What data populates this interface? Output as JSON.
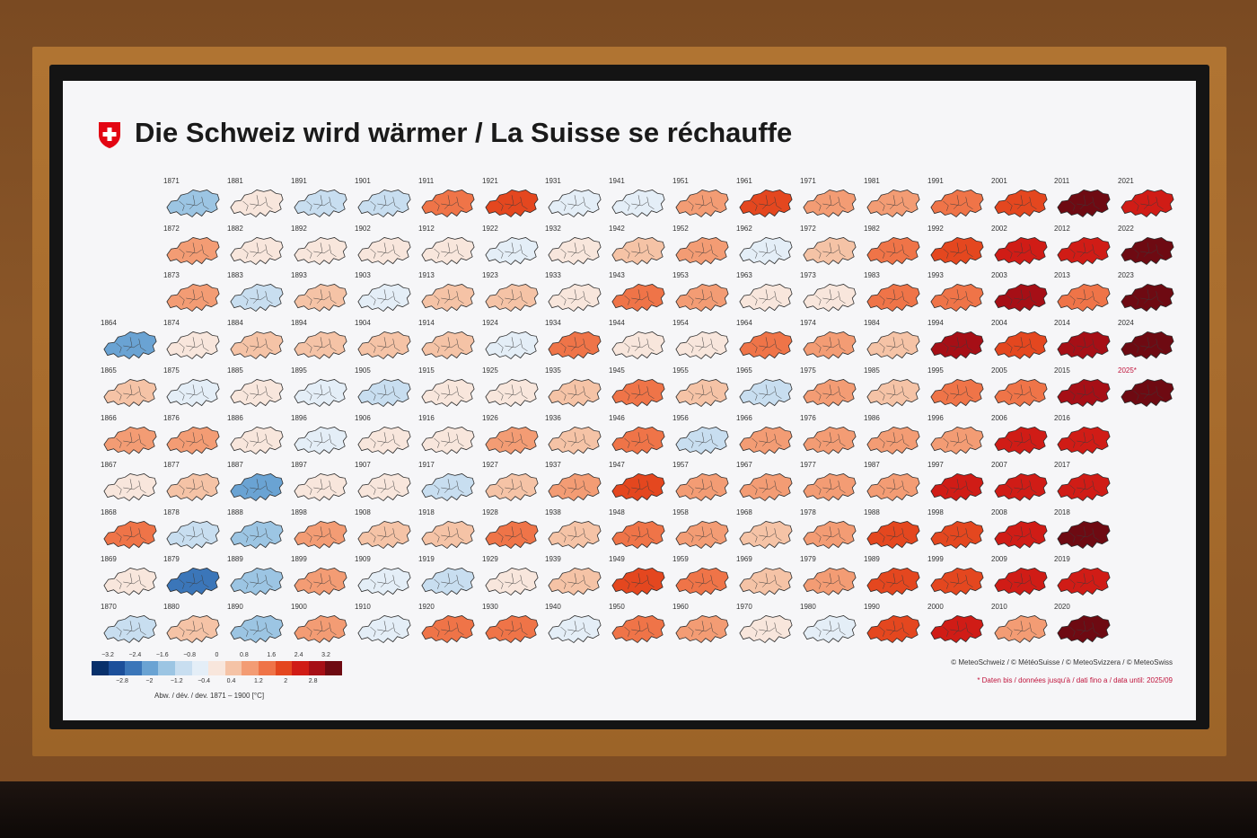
{
  "title": "Die Schweiz wird wärmer / La Suisse se réchauffe",
  "legend": {
    "upper_ticks": [
      "−3.2",
      "−2.4",
      "−1.6",
      "−0.8",
      "0",
      "0.8",
      "1.6",
      "2.4",
      "3.2"
    ],
    "lower_ticks": [
      "−2.8",
      "−2",
      "−1.2",
      "−0.4",
      "0.4",
      "1.2",
      "2",
      "2.8"
    ],
    "label": "Abw. / dév. / dev. 1871 – 1900 [°C]",
    "colors": [
      "#08306b",
      "#1c4f9a",
      "#3b76b9",
      "#6aa3d3",
      "#9cc5e3",
      "#c8def0",
      "#e4eef7",
      "#f8e6dc",
      "#f5c3a6",
      "#f39c74",
      "#ef7448",
      "#e4471f",
      "#d01c16",
      "#a60f16",
      "#6e0a12"
    ]
  },
  "credit": "© MeteoSchweiz / © MétéoSuisse / © MeteoSvizzera / © MeteoSwiss",
  "note": "* Daten bis / données jusqu'à / dati fino a / data until: 2025/09",
  "grid": [
    {
      "year": "1864",
      "bin": 3
    },
    {
      "year": "1865",
      "bin": 8
    },
    {
      "year": "1866",
      "bin": 9
    },
    {
      "year": "1867",
      "bin": 7
    },
    {
      "year": "1868",
      "bin": 10
    },
    {
      "year": "1869",
      "bin": 7
    },
    {
      "year": "1870",
      "bin": 5
    },
    {
      "year": "1871",
      "bin": 4
    },
    {
      "year": "1872",
      "bin": 9
    },
    {
      "year": "1873",
      "bin": 9
    },
    {
      "year": "1874",
      "bin": 7
    },
    {
      "year": "1875",
      "bin": 6
    },
    {
      "year": "1876",
      "bin": 9
    },
    {
      "year": "1877",
      "bin": 8
    },
    {
      "year": "1878",
      "bin": 5
    },
    {
      "year": "1879",
      "bin": 2
    },
    {
      "year": "1880",
      "bin": 8
    },
    {
      "year": "1881",
      "bin": 7
    },
    {
      "year": "1882",
      "bin": 7
    },
    {
      "year": "1883",
      "bin": 5
    },
    {
      "year": "1884",
      "bin": 8
    },
    {
      "year": "1885",
      "bin": 7
    },
    {
      "year": "1886",
      "bin": 7
    },
    {
      "year": "1887",
      "bin": 3
    },
    {
      "year": "1888",
      "bin": 4
    },
    {
      "year": "1889",
      "bin": 4
    },
    {
      "year": "1890",
      "bin": 4
    },
    {
      "year": "1891",
      "bin": 5
    },
    {
      "year": "1892",
      "bin": 7
    },
    {
      "year": "1893",
      "bin": 8
    },
    {
      "year": "1894",
      "bin": 8
    },
    {
      "year": "1895",
      "bin": 6
    },
    {
      "year": "1896",
      "bin": 6
    },
    {
      "year": "1897",
      "bin": 7
    },
    {
      "year": "1898",
      "bin": 9
    },
    {
      "year": "1899",
      "bin": 9
    },
    {
      "year": "1900",
      "bin": 9
    },
    {
      "year": "1901",
      "bin": 5
    },
    {
      "year": "1902",
      "bin": 7
    },
    {
      "year": "1903",
      "bin": 6
    },
    {
      "year": "1904",
      "bin": 8
    },
    {
      "year": "1905",
      "bin": 5
    },
    {
      "year": "1906",
      "bin": 7
    },
    {
      "year": "1907",
      "bin": 7
    },
    {
      "year": "1908",
      "bin": 8
    },
    {
      "year": "1909",
      "bin": 6
    },
    {
      "year": "1910",
      "bin": 6
    },
    {
      "year": "1911",
      "bin": 10
    },
    {
      "year": "1912",
      "bin": 7
    },
    {
      "year": "1913",
      "bin": 8
    },
    {
      "year": "1914",
      "bin": 8
    },
    {
      "year": "1915",
      "bin": 7
    },
    {
      "year": "1916",
      "bin": 7
    },
    {
      "year": "1917",
      "bin": 5
    },
    {
      "year": "1918",
      "bin": 8
    },
    {
      "year": "1919",
      "bin": 5
    },
    {
      "year": "1920",
      "bin": 10
    },
    {
      "year": "1921",
      "bin": 11
    },
    {
      "year": "1922",
      "bin": 6
    },
    {
      "year": "1923",
      "bin": 8
    },
    {
      "year": "1924",
      "bin": 6
    },
    {
      "year": "1925",
      "bin": 7
    },
    {
      "year": "1926",
      "bin": 9
    },
    {
      "year": "1927",
      "bin": 8
    },
    {
      "year": "1928",
      "bin": 10
    },
    {
      "year": "1929",
      "bin": 7
    },
    {
      "year": "1930",
      "bin": 10
    },
    {
      "year": "1931",
      "bin": 6
    },
    {
      "year": "1932",
      "bin": 7
    },
    {
      "year": "1933",
      "bin": 7
    },
    {
      "year": "1934",
      "bin": 10
    },
    {
      "year": "1935",
      "bin": 8
    },
    {
      "year": "1936",
      "bin": 8
    },
    {
      "year": "1937",
      "bin": 9
    },
    {
      "year": "1938",
      "bin": 8
    },
    {
      "year": "1939",
      "bin": 8
    },
    {
      "year": "1940",
      "bin": 6
    },
    {
      "year": "1941",
      "bin": 6
    },
    {
      "year": "1942",
      "bin": 8
    },
    {
      "year": "1943",
      "bin": 10
    },
    {
      "year": "1944",
      "bin": 7
    },
    {
      "year": "1945",
      "bin": 10
    },
    {
      "year": "1946",
      "bin": 10
    },
    {
      "year": "1947",
      "bin": 11
    },
    {
      "year": "1948",
      "bin": 10
    },
    {
      "year": "1949",
      "bin": 11
    },
    {
      "year": "1950",
      "bin": 10
    },
    {
      "year": "1951",
      "bin": 9
    },
    {
      "year": "1952",
      "bin": 9
    },
    {
      "year": "1953",
      "bin": 9
    },
    {
      "year": "1954",
      "bin": 7
    },
    {
      "year": "1955",
      "bin": 8
    },
    {
      "year": "1956",
      "bin": 5
    },
    {
      "year": "1957",
      "bin": 9
    },
    {
      "year": "1958",
      "bin": 9
    },
    {
      "year": "1959",
      "bin": 10
    },
    {
      "year": "1960",
      "bin": 9
    },
    {
      "year": "1961",
      "bin": 11
    },
    {
      "year": "1962",
      "bin": 6
    },
    {
      "year": "1963",
      "bin": 7
    },
    {
      "year": "1964",
      "bin": 10
    },
    {
      "year": "1965",
      "bin": 5
    },
    {
      "year": "1966",
      "bin": 9
    },
    {
      "year": "1967",
      "bin": 9
    },
    {
      "year": "1968",
      "bin": 8
    },
    {
      "year": "1969",
      "bin": 8
    },
    {
      "year": "1970",
      "bin": 7
    },
    {
      "year": "1971",
      "bin": 9
    },
    {
      "year": "1972",
      "bin": 8
    },
    {
      "year": "1973",
      "bin": 7
    },
    {
      "year": "1974",
      "bin": 9
    },
    {
      "year": "1975",
      "bin": 9
    },
    {
      "year": "1976",
      "bin": 9
    },
    {
      "year": "1977",
      "bin": 9
    },
    {
      "year": "1978",
      "bin": 9
    },
    {
      "year": "1979",
      "bin": 9
    },
    {
      "year": "1980",
      "bin": 6
    },
    {
      "year": "1981",
      "bin": 9
    },
    {
      "year": "1982",
      "bin": 10
    },
    {
      "year": "1983",
      "bin": 10
    },
    {
      "year": "1984",
      "bin": 8
    },
    {
      "year": "1985",
      "bin": 8
    },
    {
      "year": "1986",
      "bin": 9
    },
    {
      "year": "1987",
      "bin": 9
    },
    {
      "year": "1988",
      "bin": 11
    },
    {
      "year": "1989",
      "bin": 11
    },
    {
      "year": "1990",
      "bin": 11
    },
    {
      "year": "1991",
      "bin": 10
    },
    {
      "year": "1992",
      "bin": 11
    },
    {
      "year": "1993",
      "bin": 10
    },
    {
      "year": "1994",
      "bin": 13
    },
    {
      "year": "1995",
      "bin": 10
    },
    {
      "year": "1996",
      "bin": 9
    },
    {
      "year": "1997",
      "bin": 12
    },
    {
      "year": "1998",
      "bin": 11
    },
    {
      "year": "1999",
      "bin": 11
    },
    {
      "year": "2000",
      "bin": 12
    },
    {
      "year": "2001",
      "bin": 11
    },
    {
      "year": "2002",
      "bin": 12
    },
    {
      "year": "2003",
      "bin": 13
    },
    {
      "year": "2004",
      "bin": 11
    },
    {
      "year": "2005",
      "bin": 10
    },
    {
      "year": "2006",
      "bin": 12
    },
    {
      "year": "2007",
      "bin": 12
    },
    {
      "year": "2008",
      "bin": 12
    },
    {
      "year": "2009",
      "bin": 12
    },
    {
      "year": "2010",
      "bin": 9
    },
    {
      "year": "2011",
      "bin": 14
    },
    {
      "year": "2012",
      "bin": 12
    },
    {
      "year": "2013",
      "bin": 10
    },
    {
      "year": "2014",
      "bin": 13
    },
    {
      "year": "2015",
      "bin": 13
    },
    {
      "year": "2016",
      "bin": 12
    },
    {
      "year": "2017",
      "bin": 12
    },
    {
      "year": "2018",
      "bin": 14
    },
    {
      "year": "2019",
      "bin": 12
    },
    {
      "year": "2020",
      "bin": 14
    },
    {
      "year": "2021",
      "bin": 12
    },
    {
      "year": "2022",
      "bin": 14
    },
    {
      "year": "2023",
      "bin": 14
    },
    {
      "year": "2024",
      "bin": 14
    },
    {
      "year": "2025*",
      "bin": 14
    }
  ]
}
